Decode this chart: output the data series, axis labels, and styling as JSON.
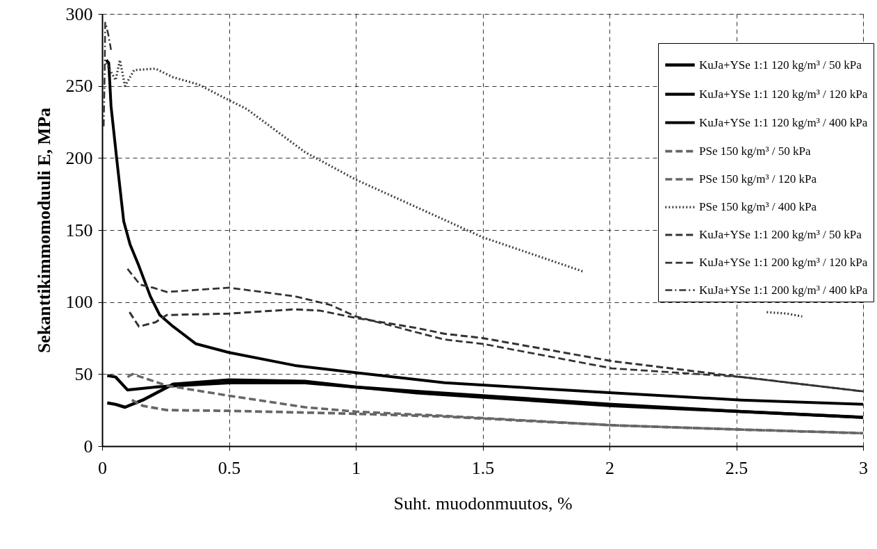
{
  "chart_data": {
    "type": "line",
    "xlabel": "Suht. muodonmuutos, %",
    "ylabel": "Sekanttikimmomoduuli E, MPa",
    "xlim": [
      0,
      3
    ],
    "xticks": [
      0,
      0.5,
      1,
      1.5,
      2,
      2.5,
      3
    ],
    "ylim": [
      0,
      300
    ],
    "yticks": [
      0,
      50,
      100,
      150,
      200,
      250,
      300
    ],
    "grid": true,
    "legend": "top right",
    "series": [
      {
        "name": "KuJa+YSe 1:1 120 kg/m³ / 50 kPa",
        "color": "#000000",
        "line_style": "solid",
        "x": [
          0.02,
          0.053,
          0.09,
          0.16,
          0.28,
          0.5,
          0.8,
          1.0,
          1.24,
          1.5,
          2.01,
          2.52,
          3.0
        ],
        "values": [
          30,
          29,
          27,
          32,
          43,
          46,
          45,
          41,
          38,
          35,
          29,
          24,
          20
        ]
      },
      {
        "name": "KuJa+YSe 1:1 120 kg/m³ / 120 kPa",
        "color": "#000000",
        "line_style": "solid",
        "x": [
          0.02,
          0.053,
          0.1,
          0.21,
          0.3,
          0.5,
          0.8,
          1.0,
          1.24,
          1.5,
          2.01,
          2.52,
          3.0
        ],
        "values": [
          49,
          48,
          39,
          41,
          42,
          44,
          44,
          41,
          37,
          34,
          28,
          24,
          20
        ]
      },
      {
        "name": "KuJa+YSe 1:1 120 kg/m³ / 400 kPa",
        "color": "#000000",
        "line_style": "solid",
        "x": [
          0.016,
          0.026,
          0.035,
          0.057,
          0.085,
          0.11,
          0.145,
          0.19,
          0.227,
          0.28,
          0.37,
          0.5,
          0.76,
          1.0,
          1.35,
          2.01,
          2.52,
          3.0
        ],
        "values": [
          268,
          266,
          236,
          200,
          156,
          140,
          125,
          104,
          91,
          83,
          71,
          65,
          56,
          51,
          44,
          37,
          32,
          29
        ]
      },
      {
        "name": "PSe 150 kg/m³ / 50 kPa",
        "color": "#666666",
        "line_style": "dashed",
        "x": [
          0.117,
          0.16,
          0.255,
          0.5,
          1.0,
          1.35,
          2.01,
          2.52,
          3.0
        ],
        "values": [
          32,
          28,
          25,
          24.5,
          22.5,
          20.5,
          14.5,
          11.5,
          9
        ]
      },
      {
        "name": "PSe 150 kg/m³ / 120 kPa",
        "color": "#666666",
        "line_style": "dashed",
        "x": [
          0.1,
          0.12,
          0.255,
          0.5,
          0.8,
          1.0,
          1.35,
          2.01,
          2.52,
          3.0
        ],
        "values": [
          48,
          50,
          42,
          35,
          27,
          24,
          21,
          14.5,
          11.5,
          9
        ]
      },
      {
        "name": "PSe 150 kg/m³ / 400 kPa",
        "color": "#404040",
        "line_style": "dotted",
        "x": [
          0.016,
          0.053,
          0.07,
          0.09,
          0.126,
          0.21,
          0.28,
          0.38,
          0.49,
          0.57,
          0.8,
          1.0,
          1.5,
          1.9,
          2.3,
          2.62,
          2.7,
          2.76
        ],
        "values": [
          266,
          254,
          268,
          250,
          261,
          262,
          256,
          251,
          241,
          234,
          204,
          185,
          145,
          121,
          null,
          93,
          92,
          90
        ]
      },
      {
        "name": "KuJa+YSe 1:1 200 kg/m³ / 50 kPa",
        "color": "#333333",
        "line_style": "dashed",
        "x": [
          0.108,
          0.145,
          0.21,
          0.255,
          0.5,
          0.76,
          0.86,
          1.0,
          1.24,
          1.35,
          1.5,
          2.01,
          2.52,
          3.0
        ],
        "values": [
          93,
          83,
          86,
          91,
          92,
          95,
          94,
          89,
          82,
          78,
          75,
          59,
          48,
          38
        ]
      },
      {
        "name": "KuJa+YSe 1:1 200 kg/m³ / 120 kPa",
        "color": "#333333",
        "line_style": "dashed",
        "x": [
          0.1,
          0.15,
          0.2,
          0.255,
          0.5,
          0.76,
          0.9,
          1.0,
          1.24,
          1.35,
          1.5,
          2.01,
          2.52,
          3.0
        ],
        "values": [
          123,
          112,
          110,
          107,
          110,
          104,
          98,
          90,
          79,
          74,
          71,
          54,
          48,
          38
        ]
      },
      {
        "name": "KuJa+YSe 1:1 200 kg/m³ / 400 kPa",
        "color": "#333333",
        "line_style": "dashdot",
        "x": [
          0.006,
          0.01,
          0.012,
          0.016,
          0.025,
          0.035
        ],
        "values": [
          222,
          260,
          294,
          292,
          285,
          275
        ]
      }
    ]
  }
}
